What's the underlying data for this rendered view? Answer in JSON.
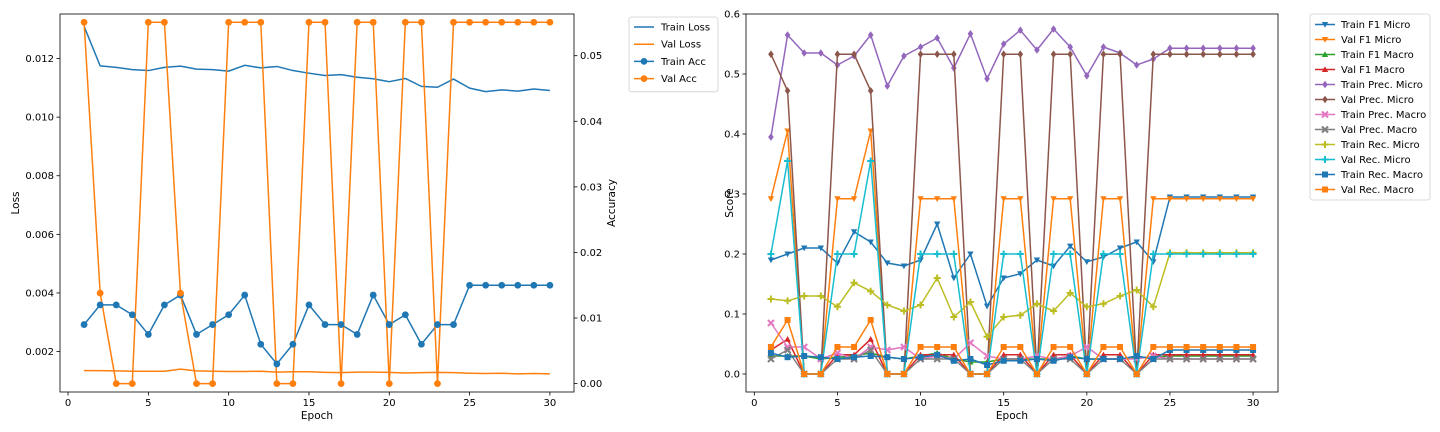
{
  "chart_data": [
    {
      "type": "line",
      "xlabel": "Epoch",
      "ylabel_left": "Loss",
      "ylabel_right": "Accuracy",
      "xlim": [
        -0.5,
        31.5
      ],
      "ylim_left": [
        0.00062,
        0.01352
      ],
      "ylim_right": [
        -0.00128,
        0.05636
      ],
      "x_ticks": [
        0,
        5,
        10,
        15,
        20,
        25,
        30
      ],
      "y_left_ticks": [
        0.002,
        0.004,
        0.006,
        0.008,
        0.01,
        0.012
      ],
      "y_left_tick_labels": [
        "0.002",
        "0.004",
        "0.006",
        "0.008",
        "0.010",
        "0.012"
      ],
      "y_right_ticks": [
        0.0,
        0.01,
        0.02,
        0.03,
        0.04,
        0.05
      ],
      "y_right_tick_labels": [
        "0.00",
        "0.01",
        "0.02",
        "0.03",
        "0.04",
        "0.05"
      ],
      "grid": false,
      "legend": "outside-right-top",
      "x": [
        1,
        2,
        3,
        4,
        5,
        6,
        7,
        8,
        9,
        10,
        11,
        12,
        13,
        14,
        15,
        16,
        17,
        18,
        19,
        20,
        21,
        22,
        23,
        24,
        25,
        26,
        27,
        28,
        29,
        30
      ],
      "series": [
        {
          "name": "Train Loss",
          "axis": "left",
          "color": "#1f77b4",
          "marker": "none",
          "values": [
            0.0131,
            0.01175,
            0.0117,
            0.01162,
            0.01159,
            0.0117,
            0.01174,
            0.01164,
            0.01162,
            0.01157,
            0.01177,
            0.01168,
            0.01173,
            0.01159,
            0.0115,
            0.01142,
            0.01145,
            0.01136,
            0.01131,
            0.01121,
            0.01132,
            0.01105,
            0.01102,
            0.0113,
            0.01099,
            0.01087,
            0.01093,
            0.01089,
            0.01096,
            0.01091
          ]
        },
        {
          "name": "Val Loss",
          "axis": "left",
          "color": "#ff7f0e",
          "marker": "none",
          "values": [
            0.00135,
            0.00135,
            0.00134,
            0.00133,
            0.00133,
            0.00133,
            0.0014,
            0.00134,
            0.00133,
            0.00132,
            0.00132,
            0.00133,
            0.0013,
            0.00131,
            0.00131,
            0.00129,
            0.00128,
            0.0013,
            0.0013,
            0.00129,
            0.00127,
            0.00128,
            0.00129,
            0.00128,
            0.00126,
            0.00125,
            0.00126,
            0.00124,
            0.00125,
            0.00124
          ]
        },
        {
          "name": "Train Acc",
          "axis": "right",
          "color": "#1f77b4",
          "marker": "circle",
          "values": [
            0.009,
            0.012,
            0.012,
            0.0105,
            0.0075,
            0.012,
            0.0135,
            0.0075,
            0.009,
            0.0105,
            0.0135,
            0.006,
            0.003,
            0.006,
            0.012,
            0.009,
            0.009,
            0.0075,
            0.0135,
            0.009,
            0.0105,
            0.006,
            0.009,
            0.009,
            0.015,
            0.015,
            0.015,
            0.015,
            0.015,
            0.015
          ]
        },
        {
          "name": "Val Acc",
          "axis": "right",
          "color": "#ff7f0e",
          "marker": "circle",
          "values": [
            0.0551,
            0.0138,
            0.0,
            0.0,
            0.0551,
            0.0551,
            0.0138,
            0.0,
            0.0,
            0.0551,
            0.0551,
            0.0551,
            0.0,
            0.0,
            0.0551,
            0.0551,
            0.0,
            0.0551,
            0.0551,
            0.0,
            0.0551,
            0.0551,
            0.0,
            0.0551,
            0.0551,
            0.0551,
            0.0551,
            0.0551,
            0.0551,
            0.0551
          ]
        }
      ]
    },
    {
      "type": "line",
      "xlabel": "Epoch",
      "ylabel": "Score",
      "xlim": [
        -0.5,
        31.5
      ],
      "ylim": [
        -0.03,
        0.6
      ],
      "x_ticks": [
        0,
        5,
        10,
        15,
        20,
        25,
        30
      ],
      "y_ticks": [
        0.0,
        0.1,
        0.2,
        0.3,
        0.4,
        0.5,
        0.6
      ],
      "y_tick_labels": [
        "0.0",
        "0.1",
        "0.2",
        "0.3",
        "0.4",
        "0.5",
        "0.6"
      ],
      "grid": false,
      "legend": "outside-right-top",
      "x": [
        1,
        2,
        3,
        4,
        5,
        6,
        7,
        8,
        9,
        10,
        11,
        12,
        13,
        14,
        15,
        16,
        17,
        18,
        19,
        20,
        21,
        22,
        23,
        24,
        25,
        26,
        27,
        28,
        29,
        30
      ],
      "series": [
        {
          "name": "Train F1 Micro",
          "color": "#1f77b4",
          "marker": "triangle-down",
          "values": [
            0.19,
            0.2,
            0.21,
            0.21,
            0.185,
            0.237,
            0.22,
            0.185,
            0.18,
            0.19,
            0.25,
            0.16,
            0.2,
            0.113,
            0.16,
            0.167,
            0.19,
            0.18,
            0.213,
            0.187,
            0.195,
            0.21,
            0.22,
            0.187,
            0.295,
            0.295,
            0.295,
            0.295,
            0.295,
            0.295
          ]
        },
        {
          "name": "Val F1 Micro",
          "color": "#ff7f0e",
          "marker": "triangle-down",
          "values": [
            0.292,
            0.405,
            0.0,
            0.0,
            0.292,
            0.292,
            0.405,
            0.0,
            0.0,
            0.292,
            0.292,
            0.292,
            0.0,
            0.0,
            0.292,
            0.292,
            0.0,
            0.292,
            0.292,
            0.0,
            0.292,
            0.292,
            0.0,
            0.292,
            0.292,
            0.292,
            0.292,
            0.292,
            0.292,
            0.292
          ]
        },
        {
          "name": "Train F1 Macro",
          "color": "#2ca02c",
          "marker": "triangle-up",
          "values": [
            0.03,
            0.03,
            0.03,
            0.025,
            0.028,
            0.03,
            0.035,
            0.028,
            0.025,
            0.03,
            0.035,
            0.025,
            0.02,
            0.02,
            0.025,
            0.025,
            0.025,
            0.025,
            0.03,
            0.025,
            0.025,
            0.025,
            0.028,
            0.028,
            0.03,
            0.03,
            0.03,
            0.03,
            0.03,
            0.03
          ]
        },
        {
          "name": "Val F1 Macro",
          "color": "#d62728",
          "marker": "triangle-up",
          "values": [
            0.04,
            0.058,
            0.0,
            0.0,
            0.032,
            0.032,
            0.058,
            0.0,
            0.0,
            0.032,
            0.032,
            0.032,
            0.0,
            0.0,
            0.032,
            0.032,
            0.0,
            0.032,
            0.032,
            0.0,
            0.032,
            0.032,
            0.0,
            0.032,
            0.032,
            0.032,
            0.032,
            0.032,
            0.032,
            0.032
          ]
        },
        {
          "name": "Train Prec. Micro",
          "color": "#9467bd",
          "marker": "diamond",
          "values": [
            0.395,
            0.565,
            0.535,
            0.535,
            0.515,
            0.53,
            0.565,
            0.48,
            0.53,
            0.545,
            0.56,
            0.51,
            0.567,
            0.492,
            0.55,
            0.573,
            0.54,
            0.575,
            0.545,
            0.497,
            0.545,
            0.535,
            0.515,
            0.525,
            0.543,
            0.543,
            0.543,
            0.543,
            0.543,
            0.543
          ]
        },
        {
          "name": "Val Prec. Micro",
          "color": "#8c564b",
          "marker": "diamond",
          "values": [
            0.533,
            0.472,
            0.0,
            0.0,
            0.533,
            0.533,
            0.472,
            0.0,
            0.0,
            0.533,
            0.533,
            0.533,
            0.0,
            0.0,
            0.533,
            0.533,
            0.0,
            0.533,
            0.533,
            0.0,
            0.533,
            0.533,
            0.0,
            0.533,
            0.533,
            0.533,
            0.533,
            0.533,
            0.533,
            0.533
          ]
        },
        {
          "name": "Train Prec. Macro",
          "color": "#e377c2",
          "marker": "x",
          "values": [
            0.085,
            0.045,
            0.045,
            0.025,
            0.035,
            0.025,
            0.045,
            0.04,
            0.045,
            0.025,
            0.03,
            0.025,
            0.052,
            0.03,
            0.025,
            0.025,
            0.03,
            0.025,
            0.03,
            0.045,
            0.025,
            0.025,
            0.025,
            0.03,
            0.025,
            0.025,
            0.025,
            0.025,
            0.025,
            0.025
          ]
        },
        {
          "name": "Val Prec. Macro",
          "color": "#7f7f7f",
          "marker": "x",
          "values": [
            0.025,
            0.04,
            0.0,
            0.0,
            0.025,
            0.025,
            0.04,
            0.0,
            0.0,
            0.025,
            0.025,
            0.025,
            0.0,
            0.0,
            0.025,
            0.025,
            0.0,
            0.025,
            0.025,
            0.0,
            0.025,
            0.025,
            0.0,
            0.025,
            0.025,
            0.025,
            0.025,
            0.025,
            0.025,
            0.025
          ]
        },
        {
          "name": "Train Rec. Micro",
          "color": "#bcbd22",
          "marker": "plus",
          "values": [
            0.125,
            0.122,
            0.13,
            0.13,
            0.112,
            0.152,
            0.138,
            0.115,
            0.105,
            0.115,
            0.16,
            0.095,
            0.12,
            0.062,
            0.095,
            0.098,
            0.117,
            0.105,
            0.135,
            0.112,
            0.117,
            0.13,
            0.14,
            0.112,
            0.202,
            0.202,
            0.202,
            0.202,
            0.202,
            0.202
          ]
        },
        {
          "name": "Val Rec. Micro",
          "color": "#17becf",
          "marker": "plus",
          "values": [
            0.2,
            0.355,
            0.0,
            0.0,
            0.2,
            0.2,
            0.355,
            0.0,
            0.0,
            0.2,
            0.2,
            0.2,
            0.0,
            0.0,
            0.2,
            0.2,
            0.0,
            0.2,
            0.2,
            0.0,
            0.2,
            0.2,
            0.0,
            0.2,
            0.2,
            0.2,
            0.2,
            0.2,
            0.2,
            0.2
          ]
        },
        {
          "name": "Train Rec. Macro",
          "color": "#1f77b4",
          "marker": "square",
          "values": [
            0.035,
            0.028,
            0.03,
            0.028,
            0.025,
            0.028,
            0.03,
            0.028,
            0.025,
            0.028,
            0.032,
            0.022,
            0.025,
            0.015,
            0.022,
            0.022,
            0.025,
            0.022,
            0.028,
            0.025,
            0.025,
            0.025,
            0.03,
            0.025,
            0.04,
            0.04,
            0.04,
            0.04,
            0.04,
            0.04
          ]
        },
        {
          "name": "Val Rec. Macro",
          "color": "#ff7f0e",
          "marker": "square",
          "values": [
            0.045,
            0.09,
            0.0,
            0.0,
            0.045,
            0.045,
            0.09,
            0.0,
            0.0,
            0.045,
            0.045,
            0.045,
            0.0,
            0.0,
            0.045,
            0.045,
            0.0,
            0.045,
            0.045,
            0.0,
            0.045,
            0.045,
            0.0,
            0.045,
            0.045,
            0.045,
            0.045,
            0.045,
            0.045,
            0.045
          ]
        }
      ]
    }
  ]
}
